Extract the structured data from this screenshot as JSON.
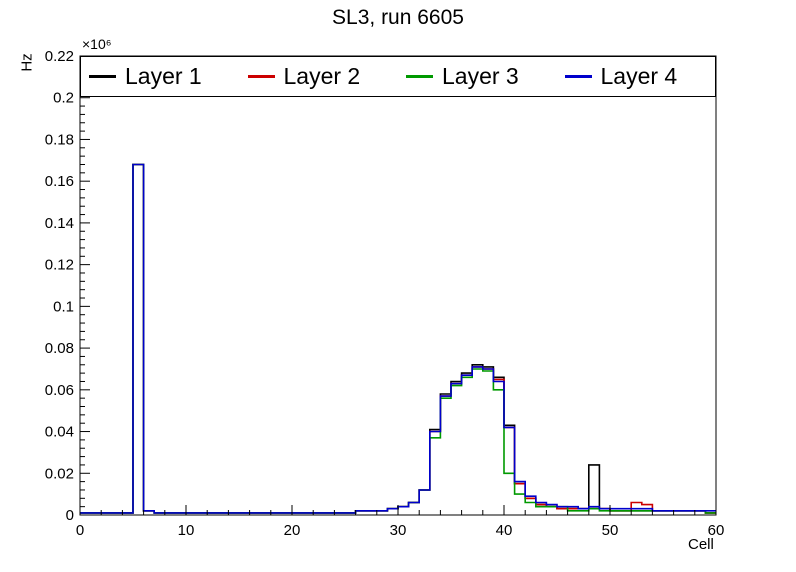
{
  "chart_data": {
    "type": "line",
    "subtype": "step-histogram",
    "title": "SL3, run 6605",
    "xlabel": "Cell",
    "ylabel": "Hz",
    "y_unit_multiplier": "×10⁶",
    "x_range": [
      0,
      60
    ],
    "y_range": [
      0,
      0.22
    ],
    "bin_width": 1,
    "grid": false,
    "legend_position": "top",
    "x_ticks": [
      0,
      10,
      20,
      30,
      40,
      50,
      60
    ],
    "y_ticks": [
      0,
      0.02,
      0.04,
      0.06,
      0.08,
      0.1,
      0.12,
      0.14,
      0.16,
      0.18,
      0.2,
      0.22
    ],
    "series": [
      {
        "name": "Layer 1",
        "color": "#000000",
        "values": [
          0.001,
          0.001,
          0.001,
          0.001,
          0.001,
          0.168,
          0.002,
          0.001,
          0.001,
          0.001,
          0.001,
          0.001,
          0.001,
          0.001,
          0.001,
          0.001,
          0.001,
          0.001,
          0.001,
          0.001,
          0.001,
          0.001,
          0.001,
          0.001,
          0.001,
          0.001,
          0.002,
          0.002,
          0.002,
          0.003,
          0.004,
          0.006,
          0.012,
          0.041,
          0.058,
          0.064,
          0.068,
          0.072,
          0.071,
          0.066,
          0.043,
          0.015,
          0.008,
          0.005,
          0.004,
          0.003,
          0.003,
          0.003,
          0.024,
          0.003,
          0.002,
          0.002,
          0.002,
          0.002,
          0.002,
          0.002,
          0.002,
          0.002,
          0.002,
          0.001
        ]
      },
      {
        "name": "Layer 2",
        "color": "#cc0000",
        "values": [
          0.001,
          0.001,
          0.001,
          0.001,
          0.001,
          0.168,
          0.002,
          0.001,
          0.001,
          0.001,
          0.001,
          0.001,
          0.001,
          0.001,
          0.001,
          0.001,
          0.001,
          0.001,
          0.001,
          0.001,
          0.001,
          0.001,
          0.001,
          0.001,
          0.001,
          0.001,
          0.002,
          0.002,
          0.002,
          0.003,
          0.004,
          0.006,
          0.012,
          0.04,
          0.057,
          0.063,
          0.067,
          0.071,
          0.07,
          0.065,
          0.042,
          0.015,
          0.008,
          0.005,
          0.004,
          0.003,
          0.003,
          0.003,
          0.003,
          0.003,
          0.002,
          0.002,
          0.006,
          0.005,
          0.002,
          0.002,
          0.002,
          0.002,
          0.002,
          0.001
        ]
      },
      {
        "name": "Layer 3",
        "color": "#009900",
        "values": [
          0.001,
          0.001,
          0.001,
          0.001,
          0.001,
          0.168,
          0.002,
          0.001,
          0.001,
          0.001,
          0.001,
          0.001,
          0.001,
          0.001,
          0.001,
          0.001,
          0.001,
          0.001,
          0.001,
          0.001,
          0.001,
          0.001,
          0.001,
          0.001,
          0.001,
          0.001,
          0.002,
          0.002,
          0.002,
          0.003,
          0.004,
          0.006,
          0.012,
          0.037,
          0.056,
          0.062,
          0.066,
          0.07,
          0.069,
          0.06,
          0.02,
          0.01,
          0.006,
          0.004,
          0.004,
          0.004,
          0.002,
          0.002,
          0.003,
          0.002,
          0.002,
          0.002,
          0.002,
          0.002,
          0.002,
          0.002,
          0.002,
          0.002,
          0.002,
          0.001
        ]
      },
      {
        "name": "Layer 4",
        "color": "#0000cc",
        "values": [
          0.001,
          0.001,
          0.001,
          0.001,
          0.001,
          0.168,
          0.002,
          0.001,
          0.001,
          0.001,
          0.001,
          0.001,
          0.001,
          0.001,
          0.001,
          0.001,
          0.001,
          0.001,
          0.001,
          0.001,
          0.001,
          0.001,
          0.001,
          0.001,
          0.001,
          0.001,
          0.002,
          0.002,
          0.002,
          0.003,
          0.004,
          0.006,
          0.012,
          0.04,
          0.057,
          0.063,
          0.067,
          0.071,
          0.07,
          0.064,
          0.042,
          0.016,
          0.009,
          0.006,
          0.005,
          0.004,
          0.004,
          0.003,
          0.004,
          0.003,
          0.003,
          0.003,
          0.003,
          0.003,
          0.002,
          0.002,
          0.002,
          0.002,
          0.002,
          0.002
        ]
      }
    ]
  }
}
